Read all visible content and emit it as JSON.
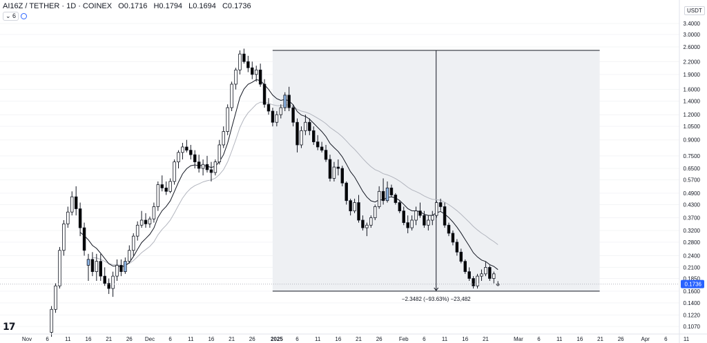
{
  "header": {
    "symbol": "AI16Z / TETHER · 1D · COINEX",
    "open_label": "O",
    "open": "0.1716",
    "high_label": "H",
    "high": "0.1794",
    "low_label": "L",
    "low": "0.1694",
    "close_label": "C",
    "close": "0.1736",
    "indicator_count": "6"
  },
  "currency": "USDT",
  "colors": {
    "up_body": "#ffffff",
    "up_highlight": "#90b8e8",
    "down_body": "#000000",
    "wick": "#131722",
    "ema_fast": "#131722",
    "ema_slow": "#b2b5be",
    "range_fill": "#eef0f3",
    "price_tag": "#2962ff"
  },
  "chart_data": {
    "type": "candlestick",
    "scale": "log",
    "ylim": [
      0.1,
      3.7
    ],
    "x_start": "2024-11-01",
    "x_end": "2025-04-12",
    "y_ticks": [
      "3.4000",
      "3.0000",
      "2.6000",
      "2.2000",
      "1.9000",
      "1.6000",
      "1.4000",
      "1.2000",
      "1.0500",
      "0.9000",
      "0.7500",
      "0.6500",
      "0.5700",
      "0.4900",
      "0.4300",
      "0.3700",
      "0.3200",
      "0.2800",
      "0.2400",
      "0.2100",
      "0.1850",
      "0.1600",
      "0.1400",
      "0.1220",
      "0.1070"
    ],
    "x_ticks": [
      {
        "date": "2024-11-01",
        "label": "Nov"
      },
      {
        "date": "2024-11-06",
        "label": "6"
      },
      {
        "date": "2024-11-11",
        "label": "11"
      },
      {
        "date": "2024-11-16",
        "label": "16"
      },
      {
        "date": "2024-11-21",
        "label": "21"
      },
      {
        "date": "2024-11-26",
        "label": "26"
      },
      {
        "date": "2024-12-01",
        "label": "Dec"
      },
      {
        "date": "2024-12-06",
        "label": "6"
      },
      {
        "date": "2024-12-11",
        "label": "11"
      },
      {
        "date": "2024-12-16",
        "label": "16"
      },
      {
        "date": "2024-12-21",
        "label": "21"
      },
      {
        "date": "2024-12-26",
        "label": "26"
      },
      {
        "date": "2025-01-01",
        "label": "2025",
        "bold": true
      },
      {
        "date": "2025-01-06",
        "label": "6"
      },
      {
        "date": "2025-01-11",
        "label": "11"
      },
      {
        "date": "2025-01-16",
        "label": "16"
      },
      {
        "date": "2025-01-21",
        "label": "21"
      },
      {
        "date": "2025-01-26",
        "label": "26"
      },
      {
        "date": "2025-02-01",
        "label": "Feb"
      },
      {
        "date": "2025-02-06",
        "label": "6"
      },
      {
        "date": "2025-02-11",
        "label": "11"
      },
      {
        "date": "2025-02-16",
        "label": "16"
      },
      {
        "date": "2025-02-21",
        "label": "21"
      },
      {
        "date": "2025-03-01",
        "label": "Mar"
      },
      {
        "date": "2025-03-06",
        "label": "6"
      },
      {
        "date": "2025-03-11",
        "label": "11"
      },
      {
        "date": "2025-03-16",
        "label": "16"
      },
      {
        "date": "2025-03-21",
        "label": "21"
      },
      {
        "date": "2025-03-26",
        "label": "26"
      },
      {
        "date": "2025-04-01",
        "label": "Apr"
      },
      {
        "date": "2025-04-06",
        "label": "6"
      },
      {
        "date": "2025-04-11",
        "label": "11"
      }
    ],
    "first_candle_date": "2024-11-07",
    "candles": [
      [
        0.1,
        0.135,
        0.095,
        0.13
      ],
      [
        0.13,
        0.175,
        0.125,
        0.17
      ],
      [
        0.17,
        0.265,
        0.165,
        0.255
      ],
      [
        0.255,
        0.36,
        0.24,
        0.345
      ],
      [
        0.345,
        0.42,
        0.33,
        0.395
      ],
      [
        0.395,
        0.5,
        0.38,
        0.47
      ],
      [
        0.47,
        0.53,
        0.38,
        0.41
      ],
      [
        0.41,
        0.44,
        0.3,
        0.33
      ],
      [
        0.33,
        0.35,
        0.24,
        0.255
      ],
      [
        0.215,
        0.245,
        0.18,
        0.23
      ],
      [
        0.23,
        0.25,
        0.19,
        0.2
      ],
      [
        0.2,
        0.245,
        0.18,
        0.225
      ],
      [
        0.225,
        0.245,
        0.18,
        0.19
      ],
      [
        0.19,
        0.21,
        0.17,
        0.175
      ],
      [
        0.175,
        0.185,
        0.155,
        0.165
      ],
      [
        0.165,
        0.2,
        0.15,
        0.19
      ],
      [
        0.19,
        0.23,
        0.18,
        0.215
      ],
      [
        0.215,
        0.23,
        0.19,
        0.2
      ],
      [
        0.2,
        0.235,
        0.195,
        0.225
      ],
      [
        0.225,
        0.27,
        0.22,
        0.255
      ],
      [
        0.255,
        0.31,
        0.24,
        0.3
      ],
      [
        0.3,
        0.355,
        0.285,
        0.34
      ],
      [
        0.34,
        0.4,
        0.33,
        0.36
      ],
      [
        0.36,
        0.39,
        0.33,
        0.345
      ],
      [
        0.345,
        0.375,
        0.33,
        0.365
      ],
      [
        0.365,
        0.44,
        0.35,
        0.42
      ],
      [
        0.42,
        0.56,
        0.4,
        0.54
      ],
      [
        0.54,
        0.6,
        0.5,
        0.52
      ],
      [
        0.52,
        0.56,
        0.48,
        0.5
      ],
      [
        0.5,
        0.58,
        0.49,
        0.56
      ],
      [
        0.56,
        0.72,
        0.54,
        0.7
      ],
      [
        0.7,
        0.8,
        0.65,
        0.78
      ],
      [
        0.78,
        0.87,
        0.72,
        0.83
      ],
      [
        0.83,
        0.9,
        0.78,
        0.8
      ],
      [
        0.8,
        0.85,
        0.72,
        0.76
      ],
      [
        0.76,
        0.8,
        0.65,
        0.7
      ],
      [
        0.7,
        0.76,
        0.62,
        0.65
      ],
      [
        0.65,
        0.72,
        0.6,
        0.68
      ],
      [
        0.68,
        0.75,
        0.62,
        0.64
      ],
      [
        0.64,
        0.7,
        0.56,
        0.62
      ],
      [
        0.62,
        0.72,
        0.6,
        0.7
      ],
      [
        0.7,
        0.9,
        0.68,
        0.85
      ],
      [
        0.85,
        1.05,
        0.82,
        0.99
      ],
      [
        0.99,
        1.35,
        0.95,
        1.3
      ],
      [
        1.3,
        1.75,
        1.25,
        1.7
      ],
      [
        1.7,
        2.05,
        1.6,
        2.0
      ],
      [
        2.0,
        2.5,
        1.9,
        2.4
      ],
      [
        2.4,
        2.55,
        2.15,
        2.2
      ],
      [
        2.2,
        2.35,
        1.95,
        2.05
      ],
      [
        2.05,
        2.2,
        1.8,
        1.9
      ],
      [
        1.9,
        2.1,
        1.75,
        2.0
      ],
      [
        2.0,
        2.15,
        1.65,
        1.7
      ],
      [
        1.7,
        1.8,
        1.3,
        1.35
      ],
      [
        1.35,
        1.45,
        1.2,
        1.25
      ],
      [
        1.25,
        1.3,
        1.05,
        1.1
      ],
      [
        1.1,
        1.25,
        1.05,
        1.2
      ],
      [
        1.2,
        1.35,
        1.15,
        1.3
      ],
      [
        1.3,
        1.55,
        1.25,
        1.5
      ],
      [
        1.5,
        1.65,
        1.25,
        1.3
      ],
      [
        1.3,
        1.35,
        1.05,
        1.1
      ],
      [
        1.1,
        1.15,
        0.78,
        0.85
      ],
      [
        0.85,
        1.05,
        0.82,
        1.0
      ],
      [
        1.0,
        1.2,
        0.95,
        1.1
      ],
      [
        1.1,
        1.15,
        0.95,
        1.0
      ],
      [
        1.0,
        1.05,
        0.85,
        0.88
      ],
      [
        0.88,
        0.95,
        0.8,
        0.83
      ],
      [
        0.83,
        0.88,
        0.78,
        0.8
      ],
      [
        0.8,
        0.85,
        0.7,
        0.72
      ],
      [
        0.72,
        0.76,
        0.56,
        0.58
      ],
      [
        0.58,
        0.7,
        0.56,
        0.66
      ],
      [
        0.66,
        0.72,
        0.6,
        0.65
      ],
      [
        0.65,
        0.67,
        0.53,
        0.55
      ],
      [
        0.55,
        0.56,
        0.43,
        0.45
      ],
      [
        0.45,
        0.46,
        0.38,
        0.4
      ],
      [
        0.4,
        0.46,
        0.39,
        0.44
      ],
      [
        0.44,
        0.48,
        0.35,
        0.36
      ],
      [
        0.36,
        0.38,
        0.32,
        0.33
      ],
      [
        0.33,
        0.35,
        0.3,
        0.34
      ],
      [
        0.34,
        0.38,
        0.33,
        0.37
      ],
      [
        0.37,
        0.43,
        0.36,
        0.42
      ],
      [
        0.42,
        0.53,
        0.41,
        0.5
      ],
      [
        0.5,
        0.58,
        0.43,
        0.45
      ],
      [
        0.45,
        0.56,
        0.44,
        0.52
      ],
      [
        0.52,
        0.54,
        0.47,
        0.48
      ],
      [
        0.48,
        0.49,
        0.43,
        0.44
      ],
      [
        0.44,
        0.45,
        0.39,
        0.4
      ],
      [
        0.4,
        0.42,
        0.34,
        0.35
      ],
      [
        0.35,
        0.38,
        0.31,
        0.33
      ],
      [
        0.33,
        0.38,
        0.32,
        0.36
      ],
      [
        0.36,
        0.42,
        0.34,
        0.4
      ],
      [
        0.4,
        0.44,
        0.37,
        0.38
      ],
      [
        0.38,
        0.4,
        0.33,
        0.34
      ],
      [
        0.34,
        0.38,
        0.32,
        0.36
      ],
      [
        0.36,
        0.4,
        0.34,
        0.38
      ],
      [
        0.38,
        0.45,
        0.37,
        0.44
      ],
      [
        0.44,
        0.46,
        0.4,
        0.42
      ],
      [
        0.42,
        0.44,
        0.33,
        0.34
      ],
      [
        0.34,
        0.35,
        0.3,
        0.31
      ],
      [
        0.31,
        0.32,
        0.27,
        0.28
      ],
      [
        0.28,
        0.29,
        0.24,
        0.25
      ],
      [
        0.25,
        0.26,
        0.22,
        0.225
      ],
      [
        0.225,
        0.23,
        0.195,
        0.2
      ],
      [
        0.2,
        0.21,
        0.18,
        0.185
      ],
      [
        0.185,
        0.19,
        0.165,
        0.17
      ],
      [
        0.17,
        0.195,
        0.165,
        0.19
      ],
      [
        0.19,
        0.205,
        0.18,
        0.195
      ],
      [
        0.195,
        0.225,
        0.19,
        0.21
      ],
      [
        0.21,
        0.215,
        0.18,
        0.185
      ],
      [
        0.185,
        0.2,
        0.175,
        0.195
      ],
      [
        0.1716,
        0.1794,
        0.1694,
        0.1736
      ]
    ],
    "highlight_up_indexes": [
      9,
      18,
      57,
      70,
      82
    ],
    "ema_fast_period": 9,
    "ema_slow_period": 21,
    "last_price": "0.1736",
    "measure": {
      "start_date": "2025-01-01",
      "end_date": "2025-03-20",
      "high": 2.5,
      "low": 0.16,
      "label": "−2.3482 (−93.63%) −23,482"
    }
  }
}
